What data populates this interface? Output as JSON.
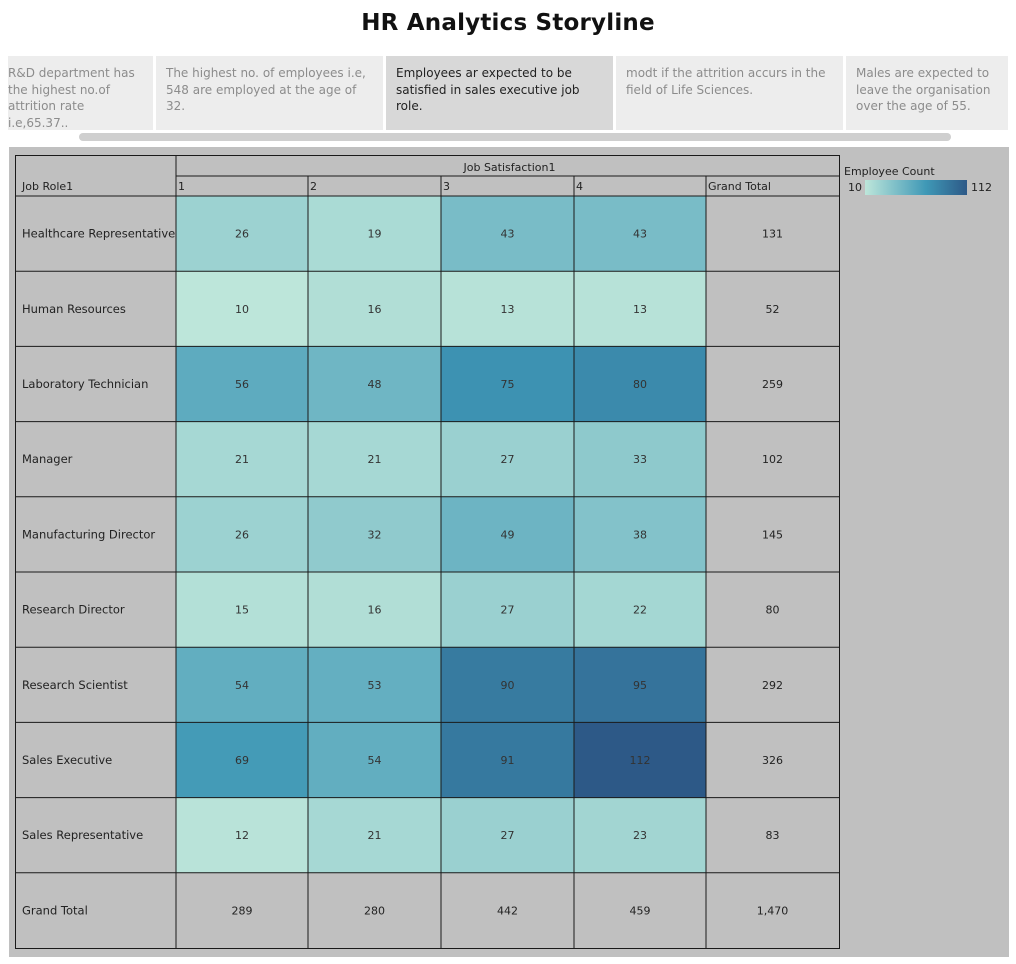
{
  "page": {
    "title": "HR  Analytics Storyline"
  },
  "story_points": [
    {
      "text": "R&D department has the highest no.of attrition rate i.e,65.37..",
      "active": false
    },
    {
      "text": "The highest no. of employees i.e, 548 are employed at the age of 32.",
      "active": false
    },
    {
      "text": "Employees ar expected to be satisfied in sales executive job role.",
      "active": true
    },
    {
      "text": "modt if the attrition accurs in the field of Life Sciences.",
      "active": false
    },
    {
      "text": "Males are expected to leave the organisation over the age  of 55.",
      "active": false
    }
  ],
  "chart_data": {
    "type": "heatmap",
    "column_header": "Job Satisfaction1",
    "row_header": "Job Role1",
    "columns": [
      "1",
      "2",
      "3",
      "4"
    ],
    "total_label": "Grand Total",
    "rows": [
      {
        "label": "Healthcare Representative",
        "values": [
          26,
          19,
          43,
          43
        ],
        "total": "131"
      },
      {
        "label": "Human Resources",
        "values": [
          10,
          16,
          13,
          13
        ],
        "total": "52"
      },
      {
        "label": "Laboratory Technician",
        "values": [
          56,
          48,
          75,
          80
        ],
        "total": "259"
      },
      {
        "label": "Manager",
        "values": [
          21,
          21,
          27,
          33
        ],
        "total": "102"
      },
      {
        "label": "Manufacturing Director",
        "values": [
          26,
          32,
          49,
          38
        ],
        "total": "145"
      },
      {
        "label": "Research Director",
        "values": [
          15,
          16,
          27,
          22
        ],
        "total": "80"
      },
      {
        "label": "Research Scientist",
        "values": [
          54,
          53,
          90,
          95
        ],
        "total": "292"
      },
      {
        "label": "Sales Executive",
        "values": [
          69,
          54,
          91,
          112
        ],
        "total": "326"
      },
      {
        "label": "Sales Representative",
        "values": [
          12,
          21,
          27,
          23
        ],
        "total": "83"
      }
    ],
    "grand_total_row": {
      "label": "Grand Total",
      "values": [
        "289",
        "280",
        "442",
        "459"
      ],
      "total": "1,470"
    },
    "legend": {
      "title": "Employee Count",
      "min": 10,
      "max": 112,
      "color_low": "#bde6da",
      "color_high": "#2d5987"
    }
  }
}
